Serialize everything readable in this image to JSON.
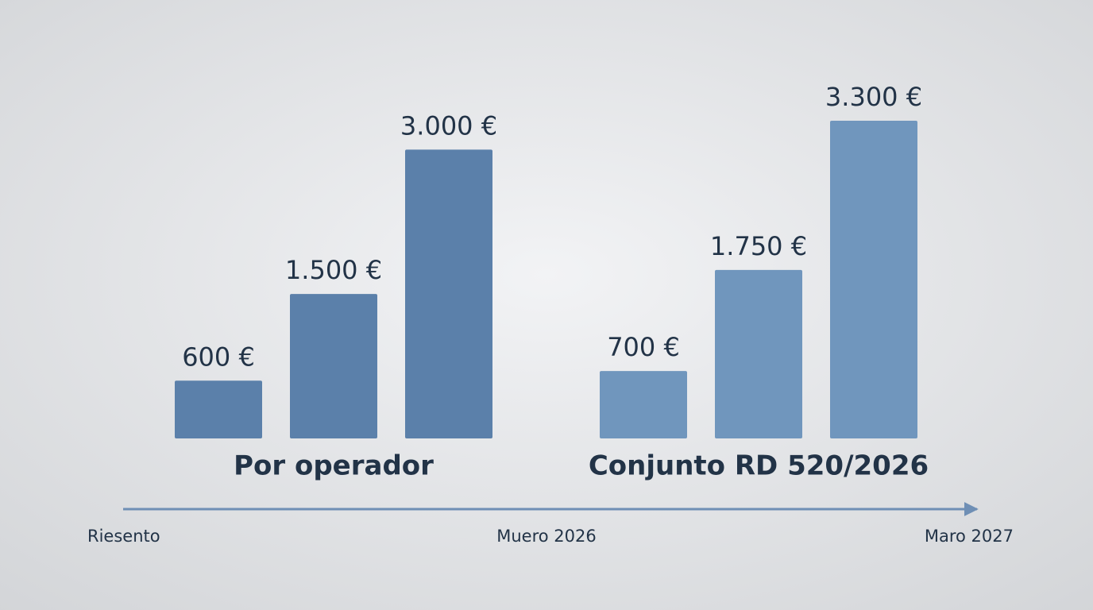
{
  "chart_data": {
    "type": "bar",
    "groups": [
      {
        "name": "Por operador",
        "color": "#5b80aa",
        "values": [
          600,
          1500,
          3000
        ],
        "value_labels": [
          "600 €",
          "1.500 €",
          "3.000 €"
        ]
      },
      {
        "name": "Conjunto RD 520/2026",
        "color": "#7096bd",
        "values": [
          700,
          1750,
          3300
        ],
        "value_labels": [
          "700 €",
          "1.750 €",
          "3.300 €"
        ]
      }
    ],
    "timeline": [
      "Riesento",
      "Muero 2026",
      "Maro 2027"
    ],
    "timeline_color": "#6f8fb5"
  }
}
